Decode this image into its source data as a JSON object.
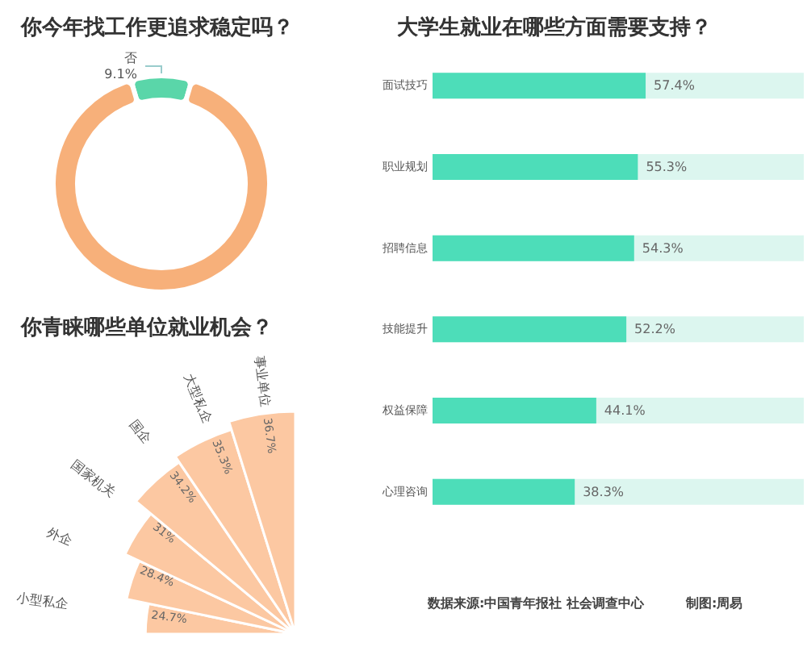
{
  "chart_data": [
    {
      "type": "donut",
      "title": "你今年找工作更追求稳定吗？",
      "categories": [
        "否",
        null
      ],
      "values": [
        9.1,
        90.9
      ],
      "colors": [
        "#5ad6a9",
        "#f7b07a"
      ],
      "value_labels": [
        "9.1%",
        null
      ],
      "legend": false
    },
    {
      "type": "bar",
      "orientation": "horizontal",
      "title": "大学生就业在哪些方面需要支持？",
      "categories": [
        "面试技巧",
        "职业规划",
        "招聘信息",
        "技能提升",
        "权益保障",
        "心理咨询"
      ],
      "values": [
        57.4,
        55.3,
        54.3,
        52.2,
        44.1,
        38.3
      ],
      "value_labels": [
        "57.4%",
        "55.3%",
        "54.3%",
        "52.2%",
        "44.1%",
        "38.3%"
      ],
      "color": "#4dddb9",
      "xlim": [
        0,
        100
      ],
      "tick_labels": "y",
      "grid": false,
      "legend": false,
      "annotations": [
        "数据来源:中国青年报社 社会调查中心",
        "制图:周易"
      ]
    },
    {
      "type": "other",
      "title": "你青睐哪些单位就业机会？",
      "categories": [
        "小型私企",
        "外企",
        "国家机关",
        "国企",
        "大型私企",
        "事业单位"
      ],
      "values": [
        24.7,
        28.4,
        31,
        34.2,
        35.3,
        36.7
      ],
      "value_labels": [
        "24.7%",
        "28.4%",
        "31%",
        "34.2%",
        "35.3%",
        "36.7%"
      ],
      "color": "#fcc8a2",
      "legend": false
    }
  ]
}
